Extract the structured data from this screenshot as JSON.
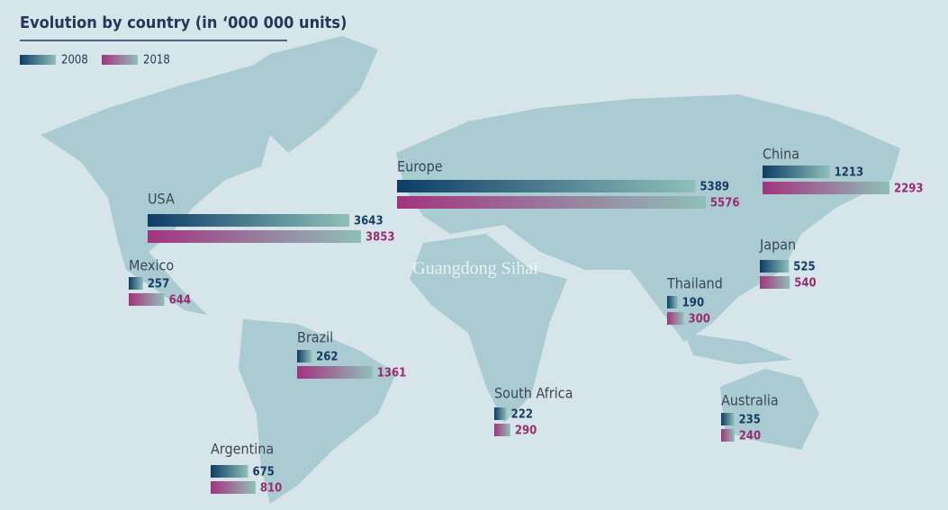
{
  "chart_data": {
    "type": "bar",
    "title": "Evolution by country (in ‘000 000 units)",
    "watermark": "Guangdong Sihai",
    "categories": [
      "USA",
      "Europe",
      "China",
      "Mexico",
      "Japan",
      "Thailand",
      "Brazil",
      "South Africa",
      "Australia",
      "Argentina"
    ],
    "series": [
      {
        "name": "2008",
        "color": "#0d3d66",
        "values": [
          3643,
          5389,
          1213,
          257,
          525,
          190,
          262,
          222,
          235,
          675
        ]
      },
      {
        "name": "2018",
        "color": "#a3337f",
        "values": [
          3853,
          5576,
          2293,
          644,
          540,
          300,
          1361,
          290,
          240,
          810
        ]
      }
    ]
  }
}
